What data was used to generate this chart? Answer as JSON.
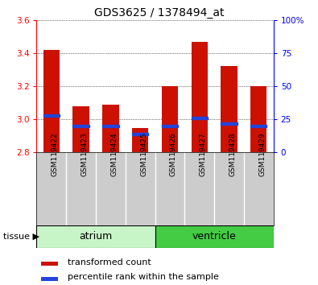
{
  "title": "GDS3625 / 1378494_at",
  "samples": [
    "GSM119422",
    "GSM119423",
    "GSM119424",
    "GSM119425",
    "GSM119426",
    "GSM119427",
    "GSM119428",
    "GSM119429"
  ],
  "transformed_count": [
    3.42,
    3.08,
    3.09,
    2.95,
    3.2,
    3.47,
    3.32,
    3.2
  ],
  "bar_bottom": 2.8,
  "percentile_rank": [
    28,
    20,
    20,
    14,
    20,
    26,
    22,
    20
  ],
  "tissue_colors": [
    "#c8f5c8",
    "#44cc44"
  ],
  "ylim_left": [
    2.8,
    3.6
  ],
  "ylim_right": [
    0,
    100
  ],
  "yticks_left": [
    2.8,
    3.0,
    3.2,
    3.4,
    3.6
  ],
  "yticks_right": [
    0,
    25,
    50,
    75,
    100
  ],
  "bar_color": "#cc1100",
  "blue_color": "#2244dd",
  "background_sample": "#cccccc",
  "legend_items": [
    "transformed count",
    "percentile rank within the sample"
  ],
  "legend_colors": [
    "#cc1100",
    "#2244dd"
  ],
  "title_fontsize": 10,
  "tick_fontsize": 7.5,
  "sample_fontsize": 6.5,
  "tissue_fontsize": 9,
  "legend_fontsize": 8
}
